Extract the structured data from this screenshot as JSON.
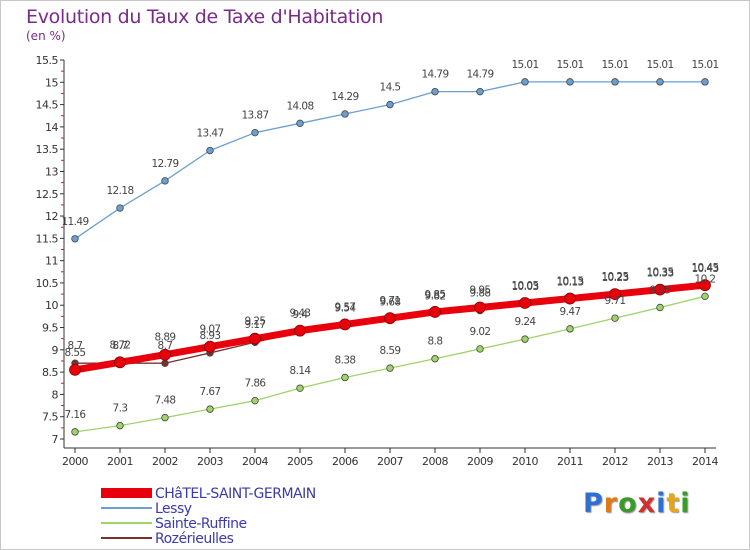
{
  "title": "Evolution du Taux de Taxe d'Habitation",
  "subtitle": "(en %)",
  "brand": {
    "text": "Proxiti",
    "letter_colors": [
      "#2e6fd0",
      "#e07a16",
      "#3a9a2a",
      "#d03030",
      "#2e6fd0",
      "#e8a516",
      "#3a9a2a"
    ]
  },
  "chart_data": {
    "type": "line",
    "x": [
      2000,
      2001,
      2002,
      2003,
      2004,
      2005,
      2006,
      2007,
      2008,
      2009,
      2010,
      2011,
      2012,
      2013,
      2014
    ],
    "x_tick_labels": [
      "2000",
      "2001",
      "2002",
      "2003",
      "2004",
      "2005",
      "2006",
      "2007",
      "2008",
      "2009",
      "2010",
      "2011",
      "2012",
      "2013",
      "2014"
    ],
    "ylim": [
      7,
      15.5
    ],
    "y_ticks": [
      7,
      7.5,
      8,
      8.5,
      9,
      9.5,
      10,
      10.5,
      11,
      11.5,
      12,
      12.5,
      13,
      13.5,
      14,
      14.5,
      15,
      15.5
    ],
    "y_tick_labels": [
      "7",
      "7.5",
      "8",
      "8.5",
      "9",
      "9.5",
      "10",
      "10.5",
      "11",
      "11.5",
      "12",
      "12.5",
      "13",
      "13.5",
      "14",
      "14.5",
      "15",
      "15.5"
    ],
    "grid": false,
    "legend_position": "bottom-left",
    "series": [
      {
        "name": "CHâTEL-SAINT-GERMAIN",
        "color": "#e8000c",
        "values": [
          8.55,
          8.72,
          8.89,
          9.07,
          9.25,
          9.43,
          9.57,
          9.71,
          9.85,
          9.95,
          10.05,
          10.15,
          10.25,
          10.35,
          10.45
        ],
        "labels": [
          "8.55",
          "8.72",
          "8.89",
          "9.07",
          "9.25",
          "9.43",
          "9.57",
          "9.71",
          "9.85",
          "9.95",
          "10.05",
          "10.15",
          "10.25",
          "10.35",
          "10.45"
        ]
      },
      {
        "name": "Lessy",
        "color": "#6a9fd0",
        "values": [
          11.49,
          12.18,
          12.79,
          13.47,
          13.87,
          14.08,
          14.29,
          14.5,
          14.79,
          14.79,
          15.01,
          15.01,
          15.01,
          15.01,
          15.01
        ],
        "labels": [
          "11.49",
          "12.18",
          "12.79",
          "13.47",
          "13.87",
          "14.08",
          "14.29",
          "14.5",
          "14.79",
          "14.79",
          "15.01",
          "15.01",
          "15.01",
          "15.01",
          "15.01"
        ]
      },
      {
        "name": "Sainte-Ruffine",
        "color": "#9ed46a",
        "values": [
          7.16,
          7.3,
          7.48,
          7.67,
          7.86,
          8.14,
          8.38,
          8.59,
          8.8,
          9.02,
          9.24,
          9.47,
          9.71,
          9.95,
          10.2
        ],
        "labels": [
          "7.16",
          "7.3",
          "7.48",
          "7.67",
          "7.86",
          "8.14",
          "8.38",
          "8.59",
          "8.8",
          "9.02",
          "9.24",
          "9.47",
          "9.71",
          "9.95",
          "10.2"
        ]
      },
      {
        "name": "Rozérieulles",
        "color": "#7a3030",
        "values": [
          8.7,
          8.7,
          8.7,
          8.93,
          9.17,
          9.4,
          9.54,
          9.68,
          9.82,
          9.88,
          10.03,
          10.13,
          10.23,
          10.33,
          10.43
        ],
        "labels": [
          "8.7",
          "8.7",
          "8.7",
          "8.93",
          "9.17",
          "9.4",
          "9.54",
          "9.68",
          "9.82",
          "9.88",
          "10.03",
          "10.13",
          "10.23",
          "10.33",
          "10.43"
        ]
      }
    ]
  }
}
